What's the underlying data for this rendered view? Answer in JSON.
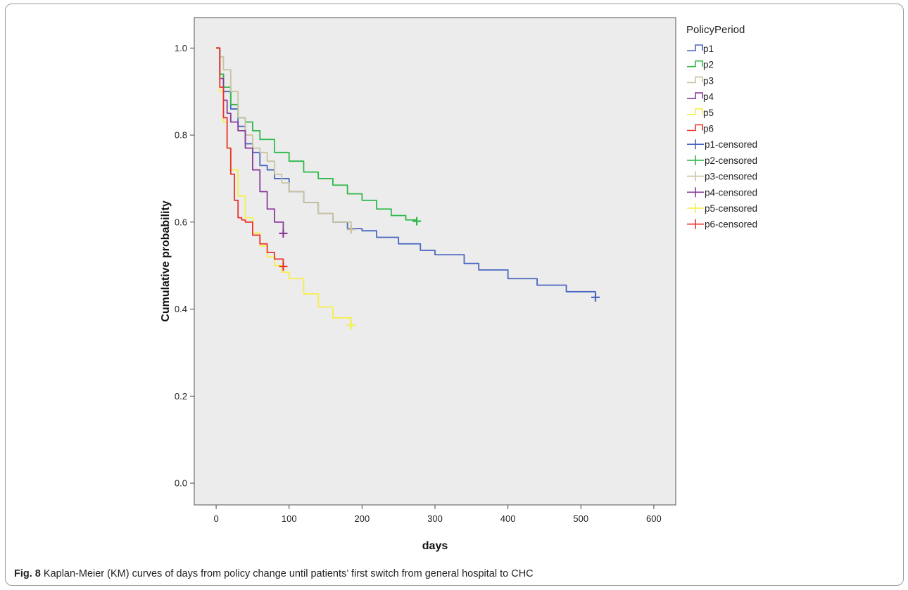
{
  "caption": {
    "label": "Fig. 8",
    "text": " Kaplan-Meier (KM) curves of days from policy change until patients’ first switch from general hospital to CHC"
  },
  "chart_data": {
    "type": "line",
    "title": "",
    "xlabel": "days",
    "ylabel": "Cumulative probability",
    "xlim": [
      -30,
      630
    ],
    "ylim": [
      -0.05,
      1.07
    ],
    "xticks": [
      0,
      100,
      200,
      300,
      400,
      500,
      600
    ],
    "yticks": [
      0.0,
      0.2,
      0.4,
      0.6,
      0.8,
      1.0
    ],
    "ytick_labels": [
      "0.0",
      "0.2",
      "0.4",
      "0.6",
      "0.8",
      "1.0"
    ],
    "grid": false,
    "background": "#ececec",
    "legend": {
      "title": "PolicyPeriod",
      "position": "right",
      "entries": [
        {
          "label": "p1",
          "kind": "step",
          "color": "#4a66c0"
        },
        {
          "label": "p2",
          "kind": "step",
          "color": "#2fb84a"
        },
        {
          "label": "p3",
          "kind": "step",
          "color": "#c9c3a0"
        },
        {
          "label": "p4",
          "kind": "step",
          "color": "#8a3a9a"
        },
        {
          "label": "p5",
          "kind": "step",
          "color": "#f5ef4a"
        },
        {
          "label": "p6",
          "kind": "step",
          "color": "#e8322e"
        },
        {
          "label": "p1-censored",
          "kind": "cross",
          "color": "#4a66c0"
        },
        {
          "label": "p2-censored",
          "kind": "cross",
          "color": "#2fb84a"
        },
        {
          "label": "p3-censored",
          "kind": "cross",
          "color": "#c9c3a0"
        },
        {
          "label": "p4-censored",
          "kind": "cross",
          "color": "#8a3a9a"
        },
        {
          "label": "p5-censored",
          "kind": "cross",
          "color": "#f5ef4a"
        },
        {
          "label": "p6-censored",
          "kind": "cross",
          "color": "#e8322e"
        }
      ]
    },
    "series": [
      {
        "name": "p1",
        "color": "#4a66c0",
        "x": [
          0,
          5,
          10,
          20,
          30,
          40,
          50,
          60,
          70,
          80,
          100,
          120,
          140,
          160,
          180,
          200,
          220,
          250,
          280,
          300,
          340,
          360,
          400,
          440,
          480,
          520
        ],
        "y": [
          1.0,
          0.94,
          0.9,
          0.86,
          0.82,
          0.78,
          0.76,
          0.73,
          0.72,
          0.7,
          0.67,
          0.645,
          0.62,
          0.6,
          0.585,
          0.58,
          0.565,
          0.55,
          0.535,
          0.525,
          0.505,
          0.49,
          0.47,
          0.455,
          0.44,
          0.427
        ],
        "censor": [
          520,
          0.427
        ]
      },
      {
        "name": "p2",
        "color": "#2fb84a",
        "x": [
          0,
          5,
          10,
          20,
          30,
          40,
          50,
          60,
          80,
          100,
          120,
          140,
          160,
          180,
          200,
          220,
          240,
          260,
          275
        ],
        "y": [
          1.0,
          0.94,
          0.91,
          0.87,
          0.84,
          0.83,
          0.81,
          0.79,
          0.76,
          0.74,
          0.715,
          0.7,
          0.685,
          0.665,
          0.65,
          0.63,
          0.615,
          0.605,
          0.602
        ],
        "censor": [
          275,
          0.602
        ]
      },
      {
        "name": "p3",
        "color": "#c9c3a0",
        "x": [
          0,
          5,
          10,
          20,
          30,
          40,
          50,
          60,
          70,
          80,
          90,
          100,
          120,
          140,
          160,
          185
        ],
        "y": [
          1.0,
          0.98,
          0.95,
          0.9,
          0.84,
          0.8,
          0.77,
          0.76,
          0.74,
          0.71,
          0.69,
          0.67,
          0.645,
          0.62,
          0.6,
          0.583
        ],
        "censor": [
          185,
          0.583
        ]
      },
      {
        "name": "p4",
        "color": "#8a3a9a",
        "x": [
          0,
          5,
          10,
          15,
          20,
          30,
          40,
          50,
          60,
          70,
          80,
          92
        ],
        "y": [
          1.0,
          0.93,
          0.88,
          0.85,
          0.83,
          0.81,
          0.77,
          0.72,
          0.67,
          0.63,
          0.6,
          0.574
        ],
        "censor": [
          92,
          0.574
        ]
      },
      {
        "name": "p5",
        "color": "#f5ef4a",
        "x": [
          0,
          5,
          10,
          15,
          20,
          30,
          40,
          50,
          60,
          70,
          80,
          90,
          100,
          120,
          140,
          160,
          185
        ],
        "y": [
          1.0,
          0.9,
          0.83,
          0.77,
          0.72,
          0.66,
          0.61,
          0.575,
          0.545,
          0.52,
          0.5,
          0.485,
          0.47,
          0.435,
          0.405,
          0.38,
          0.363
        ],
        "censor": [
          185,
          0.363
        ]
      },
      {
        "name": "p6",
        "color": "#e8322e",
        "x": [
          0,
          5,
          10,
          15,
          20,
          25,
          30,
          35,
          40,
          50,
          60,
          70,
          80,
          92
        ],
        "y": [
          1.0,
          0.91,
          0.84,
          0.77,
          0.71,
          0.65,
          0.61,
          0.605,
          0.6,
          0.57,
          0.55,
          0.53,
          0.515,
          0.498
        ],
        "censor": [
          92,
          0.498
        ]
      }
    ]
  }
}
